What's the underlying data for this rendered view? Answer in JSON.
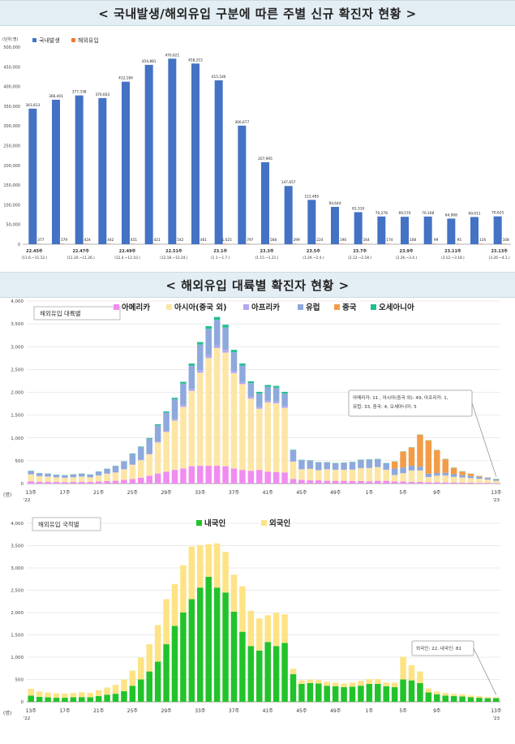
{
  "titles": {
    "top": "< 국내발생/해외유입 구분에 따른 주별 신규 확진자 현황 >",
    "middle": "< 해외유입 대륙별 확진자 현황 >"
  },
  "chart_data": [
    {
      "type": "bar",
      "unit": "(단위:명)",
      "legend": [
        {
          "name": "국내발생",
          "color": "#4472c4"
        },
        {
          "name": "해외유입",
          "color": "#ed7d31"
        }
      ],
      "categories": [
        {
          "label": "22.45주",
          "range": "(11.6.~11.12.)"
        },
        {
          "label": "",
          "range": ""
        },
        {
          "label": "22.47주",
          "range": "(11.20.~11.26.)"
        },
        {
          "label": "",
          "range": ""
        },
        {
          "label": "22.49주",
          "range": "(12.4.~12.10.)"
        },
        {
          "label": "",
          "range": ""
        },
        {
          "label": "22.51주",
          "range": "(12.18.~12.24.)"
        },
        {
          "label": "",
          "range": ""
        },
        {
          "label": "23.1주",
          "range": "(1.1.~1.7.)"
        },
        {
          "label": "",
          "range": ""
        },
        {
          "label": "23.3주",
          "range": "(1.15.~1.21.)"
        },
        {
          "label": "",
          "range": ""
        },
        {
          "label": "23.5주",
          "range": "(1.29.~2.4.)"
        },
        {
          "label": "",
          "range": ""
        },
        {
          "label": "23.7주",
          "range": "(2.12.~2.18.)"
        },
        {
          "label": "",
          "range": ""
        },
        {
          "label": "23.9주",
          "range": "(2.26.~3.4.)"
        },
        {
          "label": "",
          "range": ""
        },
        {
          "label": "23.11주",
          "range": "(3.12.~3.18.)"
        },
        {
          "label": "",
          "range": ""
        },
        {
          "label": "23.13주",
          "range": "(3.26.~4.1.)"
        }
      ],
      "series": [
        {
          "name": "국내발생",
          "values": [
            343813,
            366401,
            377338,
            370603,
            412184,
            454881,
            470621,
            458215,
            415540,
            300677,
            207995,
            147657,
            112485,
            94644,
            81310,
            70278,
            69570,
            70168,
            64968,
            69011,
            70625
          ],
          "value_labels": [
            "343,813",
            "366,401",
            "377,338",
            "370,603",
            "412,184",
            "454,881",
            "470,621",
            "458,215",
            "415,540",
            "300,677",
            "207,995",
            "147,657",
            "112,485",
            "94,644",
            "81,310",
            "70,278",
            "69,570",
            "70,168",
            "64,968",
            "69,011",
            "70,625"
          ]
        },
        {
          "name": "해외유입",
          "values": [
            377,
            379,
            424,
            442,
            451,
            421,
            542,
            461,
            1025,
            797,
            568,
            299,
            224,
            196,
            164,
            174,
            108,
            99,
            95,
            116,
            108
          ],
          "value_labels": [
            "377",
            "379",
            "424",
            "442",
            "451",
            "421",
            "542",
            "461",
            "1,025",
            "797",
            "568",
            "299",
            "224",
            "196",
            "164",
            "174",
            "108",
            "99",
            "95",
            "116",
            "108"
          ]
        }
      ],
      "ylim": [
        0,
        500000
      ],
      "yticks": [
        0,
        50000,
        100000,
        150000,
        200000,
        250000,
        300000,
        350000,
        400000,
        450000,
        500000
      ],
      "ytick_labels": [
        "0",
        "50,000",
        "100,000",
        "150,000",
        "200,000",
        "250,000",
        "300,000",
        "350,000",
        "400,000",
        "450,000",
        "500,000"
      ]
    },
    {
      "type": "bar",
      "stacked": true,
      "box_label": "해외유입 대륙별",
      "legend": [
        {
          "name": "아메리카",
          "color": "#f08cf0"
        },
        {
          "name": "아시아(중국 외)",
          "color": "#fde6a4"
        },
        {
          "name": "아프리카",
          "color": "#b4a7f0"
        },
        {
          "name": "유럽",
          "color": "#8ea9db"
        },
        {
          "name": "중국",
          "color": "#f39c48"
        },
        {
          "name": "오세아니아",
          "color": "#1fbf8f"
        }
      ],
      "annotation_line1": "아메리카: 11 , 아시아(중국 외): 49, 아프리카: 1,",
      "annotation_line2": "유럽: 33, 중국: 4, 오세아니아: 5",
      "ylim": [
        0,
        4000
      ],
      "yticks": [
        0,
        500,
        1000,
        1500,
        2000,
        2500,
        3000,
        3500,
        4000
      ],
      "ytick_labels": [
        "0",
        "500",
        "1,000",
        "1,500",
        "2,000",
        "2,500",
        "3,000",
        "3,500",
        "4,000"
      ],
      "ylabel": "(명)",
      "xtick_labels": [
        "13주",
        "17주",
        "21주",
        "25주",
        "29주",
        "33주",
        "37주",
        "41주",
        "45주",
        "49주",
        "1주",
        "5주",
        "9주",
        "13주"
      ],
      "xyear_labels": [
        "'22",
        "'23"
      ],
      "series": [
        {
          "name": "아메리카",
          "values": [
            50,
            40,
            40,
            35,
            30,
            35,
            40,
            35,
            45,
            55,
            60,
            80,
            100,
            130,
            170,
            220,
            260,
            300,
            330,
            380,
            390,
            390,
            390,
            380,
            330,
            300,
            280,
            300,
            260,
            250,
            240,
            100,
            80,
            70,
            70,
            60,
            60,
            60,
            55,
            55,
            50,
            60,
            60,
            45,
            45,
            35,
            35,
            30,
            30,
            25,
            25,
            20,
            18,
            15,
            15,
            11
          ]
        },
        {
          "name": "아시아(중국 외)",
          "values": [
            150,
            120,
            110,
            100,
            95,
            100,
            110,
            100,
            130,
            160,
            180,
            230,
            310,
            380,
            470,
            680,
            870,
            1080,
            1350,
            1650,
            2040,
            2360,
            2580,
            2490,
            2090,
            1880,
            1580,
            1340,
            1520,
            1510,
            1420,
            380,
            230,
            250,
            220,
            250,
            240,
            240,
            250,
            280,
            290,
            300,
            240,
            140,
            180,
            250,
            250,
            110,
            140,
            150,
            120,
            110,
            100,
            90,
            70,
            49
          ]
        },
        {
          "name": "아프리카",
          "values": [
            5,
            5,
            5,
            5,
            5,
            5,
            5,
            5,
            5,
            5,
            5,
            5,
            10,
            10,
            15,
            20,
            25,
            30,
            40,
            45,
            55,
            60,
            60,
            60,
            50,
            45,
            40,
            35,
            40,
            40,
            35,
            10,
            5,
            5,
            5,
            5,
            5,
            5,
            5,
            5,
            5,
            5,
            5,
            5,
            5,
            5,
            5,
            5,
            5,
            5,
            5,
            5,
            3,
            2,
            2,
            1
          ]
        },
        {
          "name": "유럽",
          "values": [
            70,
            60,
            60,
            50,
            50,
            60,
            60,
            55,
            80,
            100,
            140,
            170,
            230,
            280,
            330,
            360,
            400,
            440,
            470,
            510,
            560,
            580,
            560,
            490,
            410,
            360,
            300,
            300,
            300,
            300,
            280,
            240,
            200,
            180,
            170,
            150,
            140,
            150,
            160,
            180,
            180,
            170,
            140,
            140,
            120,
            100,
            80,
            70,
            55,
            55,
            55,
            50,
            45,
            40,
            35,
            33
          ]
        },
        {
          "name": "중국",
          "values": [
            0,
            0,
            0,
            0,
            0,
            0,
            0,
            0,
            0,
            0,
            0,
            0,
            0,
            0,
            0,
            0,
            0,
            0,
            0,
            0,
            0,
            0,
            0,
            0,
            0,
            0,
            0,
            0,
            0,
            0,
            0,
            0,
            0,
            0,
            0,
            0,
            0,
            0,
            0,
            0,
            0,
            0,
            0,
            150,
            350,
            400,
            700,
            730,
            500,
            300,
            140,
            80,
            50,
            20,
            10,
            4
          ]
        },
        {
          "name": "오세아니아",
          "values": [
            5,
            5,
            5,
            5,
            5,
            5,
            5,
            5,
            5,
            5,
            5,
            5,
            10,
            10,
            15,
            20,
            25,
            30,
            40,
            45,
            55,
            60,
            60,
            60,
            50,
            45,
            40,
            35,
            40,
            40,
            35,
            10,
            5,
            5,
            5,
            5,
            5,
            5,
            5,
            5,
            5,
            5,
            5,
            5,
            5,
            5,
            5,
            5,
            5,
            5,
            5,
            5,
            3,
            2,
            2,
            5
          ]
        }
      ]
    },
    {
      "type": "bar",
      "stacked": true,
      "box_label": "해외유입 국적별",
      "legend": [
        {
          "name": "내국인",
          "color": "#22c32a"
        },
        {
          "name": "외국인",
          "color": "#fde384"
        }
      ],
      "annotation": "외국인: 22, 내국인: 81",
      "ylim": [
        0,
        4000
      ],
      "yticks": [
        0,
        500,
        1000,
        1500,
        2000,
        2500,
        3000,
        3500,
        4000
      ],
      "ytick_labels": [
        "0",
        "500",
        "1,000",
        "1,500",
        "2,000",
        "2,500",
        "3,000",
        "3,500",
        "4,000"
      ],
      "ylabel": "(명)",
      "xtick_labels": [
        "13주",
        "17주",
        "21주",
        "25주",
        "29주",
        "33주",
        "37주",
        "41주",
        "45주",
        "49주",
        "1주",
        "5주",
        "9주",
        "13주"
      ],
      "xyear_labels": [
        "'22",
        "'23"
      ],
      "series": [
        {
          "name": "내국인",
          "values": [
            140,
            110,
            100,
            90,
            90,
            100,
            105,
            100,
            130,
            160,
            180,
            240,
            360,
            500,
            680,
            900,
            1290,
            1700,
            2000,
            2300,
            2560,
            2800,
            2560,
            2450,
            2020,
            1570,
            1250,
            1150,
            1340,
            1250,
            1320,
            620,
            400,
            420,
            410,
            360,
            350,
            330,
            340,
            360,
            400,
            400,
            350,
            330,
            500,
            480,
            420,
            210,
            170,
            140,
            130,
            120,
            100,
            90,
            80,
            81
          ]
        },
        {
          "name": "외국인",
          "values": [
            150,
            120,
            110,
            100,
            95,
            100,
            110,
            100,
            130,
            160,
            200,
            260,
            340,
            490,
            610,
            820,
            1010,
            940,
            1060,
            1180,
            950,
            730,
            990,
            910,
            830,
            1020,
            790,
            720,
            600,
            740,
            640,
            120,
            80,
            80,
            80,
            90,
            80,
            80,
            90,
            110,
            110,
            110,
            80,
            100,
            510,
            340,
            260,
            90,
            60,
            60,
            50,
            50,
            40,
            40,
            30,
            22
          ]
        }
      ]
    }
  ]
}
